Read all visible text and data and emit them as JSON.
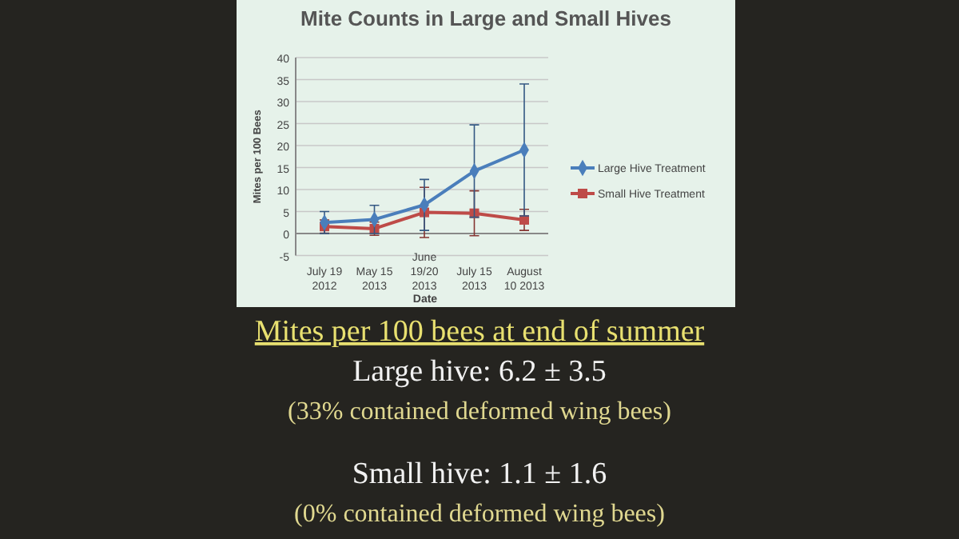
{
  "chart_data": {
    "type": "line",
    "title": "Mite Counts in Large and Small Hives",
    "xlabel": "Date",
    "ylabel": "Mites per 100 Bees",
    "categories": [
      "July 19\n2012",
      "May 15\n2013",
      "June\n19/20\n2013",
      "July 15\n2013",
      "August\n10 2013"
    ],
    "series": [
      {
        "name": "Large Hive Treatment",
        "color": "#4a7ebb",
        "marker": "diamond",
        "values": [
          2.5,
          3.2,
          6.5,
          14.2,
          19
        ],
        "errors": [
          2.5,
          3.2,
          5.8,
          10.5,
          15
        ]
      },
      {
        "name": "Small Hive Treatment",
        "color": "#be4b48",
        "marker": "square",
        "values": [
          1.6,
          1.1,
          4.8,
          4.6,
          3.1
        ],
        "errors": [
          1.5,
          1.5,
          5.7,
          5.1,
          2.4
        ]
      }
    ],
    "ylim": [
      -5,
      40
    ],
    "yticks": [
      -5,
      0,
      5,
      10,
      15,
      20,
      25,
      30,
      35,
      40
    ],
    "grid": "y",
    "legend": "right",
    "annotations": [
      "Mites per 100 bees at end of summer",
      "Large hive:  6.2 ± 3.5",
      "(33% contained deformed wing bees)",
      "Small hive:  1.1  ± 1.6",
      "(0% contained deformed wing bees)"
    ]
  }
}
